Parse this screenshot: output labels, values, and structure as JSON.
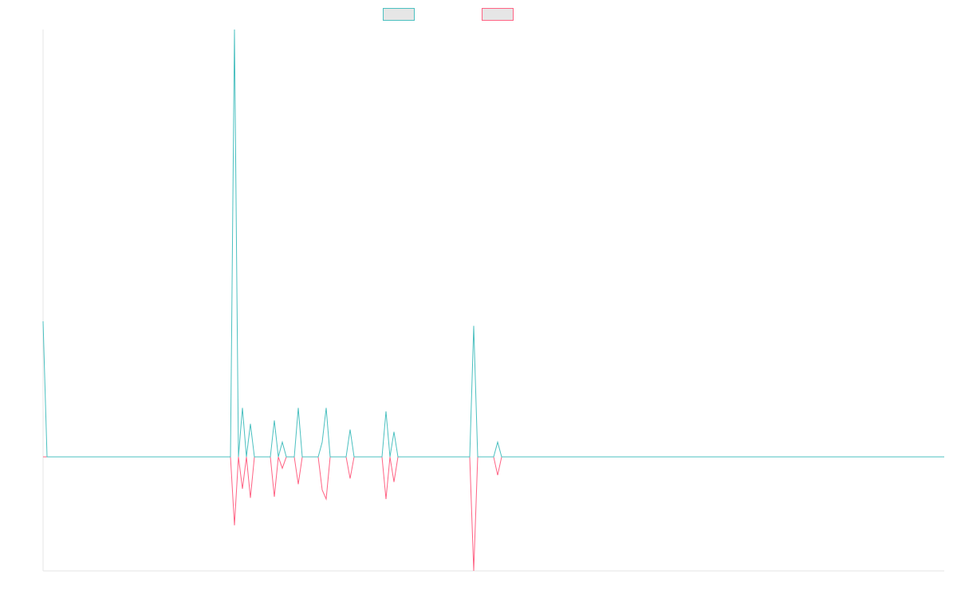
{
  "chart_data": {
    "type": "line",
    "title": "",
    "xlabel": "",
    "ylabel": "",
    "x_count": 227,
    "ylim": [
      -1.0,
      3.75
    ],
    "grid": false,
    "legend_position": "top-center",
    "series": [
      {
        "name": "",
        "color": "#4bc0c0",
        "points": [
          [
            0,
            1.19
          ],
          [
            1,
            0
          ],
          [
            47,
            0
          ],
          [
            48,
            3.75
          ],
          [
            49,
            0
          ],
          [
            50,
            0.43
          ],
          [
            51,
            0
          ],
          [
            52,
            0.29
          ],
          [
            53,
            0
          ],
          [
            57,
            0
          ],
          [
            58,
            0.32
          ],
          [
            59,
            0
          ],
          [
            60,
            0.13
          ],
          [
            61,
            0
          ],
          [
            63,
            0
          ],
          [
            64,
            0.43
          ],
          [
            65,
            0
          ],
          [
            69,
            0
          ],
          [
            70,
            0.13
          ],
          [
            71,
            0.43
          ],
          [
            72,
            0
          ],
          [
            76,
            0
          ],
          [
            77,
            0.24
          ],
          [
            78,
            0
          ],
          [
            85,
            0
          ],
          [
            86,
            0.4
          ],
          [
            87,
            0
          ],
          [
            88,
            0.22
          ],
          [
            89,
            0
          ],
          [
            107,
            0
          ],
          [
            108,
            1.15
          ],
          [
            109,
            0
          ],
          [
            113,
            0
          ],
          [
            114,
            0.13
          ],
          [
            115,
            0
          ],
          [
            226,
            0
          ]
        ]
      },
      {
        "name": "",
        "color": "#ff6384",
        "points": [
          [
            0,
            0
          ],
          [
            1,
            0
          ],
          [
            47,
            0
          ],
          [
            48,
            -0.6
          ],
          [
            49,
            0
          ],
          [
            50,
            -0.28
          ],
          [
            51,
            0
          ],
          [
            52,
            -0.36
          ],
          [
            53,
            0
          ],
          [
            57,
            0
          ],
          [
            58,
            -0.35
          ],
          [
            59,
            0
          ],
          [
            60,
            -0.1
          ],
          [
            61,
            0
          ],
          [
            63,
            0
          ],
          [
            64,
            -0.24
          ],
          [
            65,
            0
          ],
          [
            69,
            0
          ],
          [
            70,
            -0.29
          ],
          [
            71,
            -0.37
          ],
          [
            72,
            0
          ],
          [
            76,
            0
          ],
          [
            77,
            -0.19
          ],
          [
            78,
            0
          ],
          [
            85,
            0
          ],
          [
            86,
            -0.37
          ],
          [
            87,
            0
          ],
          [
            88,
            -0.22
          ],
          [
            89,
            0
          ],
          [
            107,
            0
          ],
          [
            108,
            -1.0
          ],
          [
            109,
            0
          ],
          [
            113,
            0
          ],
          [
            114,
            -0.16
          ],
          [
            115,
            0
          ],
          [
            226,
            0
          ]
        ]
      }
    ]
  }
}
